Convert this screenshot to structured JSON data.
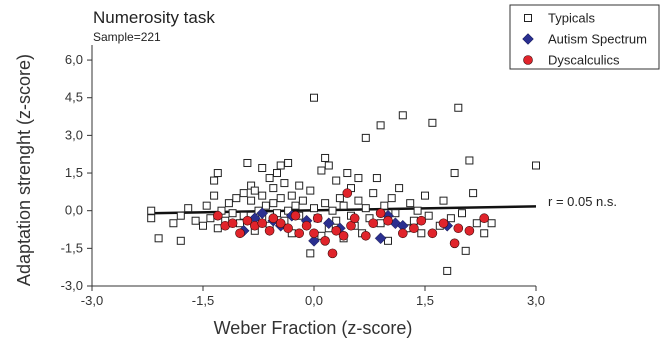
{
  "chart_data": {
    "type": "scatter",
    "title": "Numerosity task",
    "subtitle": "Sample=221",
    "xlabel": "Weber Fraction (z-score)",
    "ylabel": "Adaptation strenght (z-score)",
    "xlim": [
      -3,
      3
    ],
    "ylim": [
      -3,
      6.6
    ],
    "xticks": [
      -3,
      -1.5,
      0,
      1.5,
      3
    ],
    "xtick_labels": [
      "-3,0",
      "-1,5",
      "0,0",
      "1,5",
      "3,0"
    ],
    "yticks": [
      -3,
      -1.5,
      0,
      1.5,
      3,
      4.5,
      6
    ],
    "ytick_labels": [
      "-3,0",
      "-1,5",
      "0,0",
      "1,5",
      "3,0",
      "4,5",
      "6,0"
    ],
    "grid": false,
    "legend_position": "top-right",
    "annotation": "r = 0.05 n.s.",
    "regression_line": {
      "x": [
        -2.2,
        3.0
      ],
      "y": [
        -0.1,
        0.17
      ]
    },
    "series": [
      {
        "name": "Typicals",
        "marker": "square-open",
        "color": "#222222",
        "points": [
          [
            -2.2,
            0.0
          ],
          [
            -2.2,
            -0.3
          ],
          [
            -2.1,
            -1.1
          ],
          [
            -1.9,
            -0.5
          ],
          [
            -1.8,
            -0.2
          ],
          [
            -1.8,
            -1.2
          ],
          [
            -1.7,
            0.1
          ],
          [
            -1.6,
            -0.4
          ],
          [
            -1.5,
            -0.6
          ],
          [
            -1.45,
            0.2
          ],
          [
            -1.4,
            -0.3
          ],
          [
            -1.35,
            0.6
          ],
          [
            -1.35,
            1.2
          ],
          [
            -1.3,
            1.5
          ],
          [
            -1.3,
            -0.7
          ],
          [
            -1.25,
            0.0
          ],
          [
            -1.2,
            -0.4
          ],
          [
            -1.15,
            0.3
          ],
          [
            -1.1,
            -0.1
          ],
          [
            -1.05,
            0.5
          ],
          [
            -1.0,
            -0.5
          ],
          [
            -0.95,
            0.7
          ],
          [
            -0.95,
            -0.2
          ],
          [
            -0.9,
            1.9
          ],
          [
            -0.85,
            1.0
          ],
          [
            -0.85,
            0.4
          ],
          [
            -0.8,
            0.8
          ],
          [
            -0.8,
            -0.8
          ],
          [
            -0.75,
            0.0
          ],
          [
            -0.7,
            1.7
          ],
          [
            -0.7,
            0.6
          ],
          [
            -0.7,
            -0.3
          ],
          [
            -0.65,
            0.2
          ],
          [
            -0.6,
            1.3
          ],
          [
            -0.6,
            -0.6
          ],
          [
            -0.55,
            0.9
          ],
          [
            -0.55,
            0.3
          ],
          [
            -0.5,
            1.5
          ],
          [
            -0.5,
            -0.1
          ],
          [
            -0.45,
            1.8
          ],
          [
            -0.45,
            0.5
          ],
          [
            -0.4,
            -0.4
          ],
          [
            -0.4,
            1.1
          ],
          [
            -0.35,
            1.9
          ],
          [
            -0.35,
            0.0
          ],
          [
            -0.3,
            0.6
          ],
          [
            -0.3,
            -0.9
          ],
          [
            -0.25,
            0.2
          ],
          [
            -0.2,
            -0.2
          ],
          [
            -0.2,
            1.0
          ],
          [
            -0.15,
            0.4
          ],
          [
            -0.1,
            -0.5
          ],
          [
            -0.05,
            -1.7
          ],
          [
            -0.05,
            0.8
          ],
          [
            0.0,
            0.1
          ],
          [
            0.0,
            4.5
          ],
          [
            0.05,
            -0.3
          ],
          [
            0.1,
            1.6
          ],
          [
            0.1,
            -1.0
          ],
          [
            0.15,
            2.1
          ],
          [
            0.15,
            0.3
          ],
          [
            0.2,
            1.8
          ],
          [
            0.2,
            -0.7
          ],
          [
            0.25,
            0.0
          ],
          [
            0.3,
            1.2
          ],
          [
            0.3,
            -0.4
          ],
          [
            0.35,
            0.5
          ],
          [
            0.4,
            -1.1
          ],
          [
            0.4,
            0.2
          ],
          [
            0.45,
            1.5
          ],
          [
            0.5,
            -0.2
          ],
          [
            0.5,
            0.9
          ],
          [
            0.55,
            -0.6
          ],
          [
            0.6,
            1.3
          ],
          [
            0.6,
            0.4
          ],
          [
            0.65,
            -0.9
          ],
          [
            0.7,
            0.1
          ],
          [
            0.7,
            2.9
          ],
          [
            0.75,
            -0.3
          ],
          [
            0.8,
            0.7
          ],
          [
            0.85,
            1.3
          ],
          [
            0.9,
            -0.5
          ],
          [
            0.9,
            3.4
          ],
          [
            0.95,
            0.2
          ],
          [
            1.0,
            -1.2
          ],
          [
            1.05,
            0.5
          ],
          [
            1.1,
            -0.1
          ],
          [
            1.15,
            0.9
          ],
          [
            1.2,
            3.8
          ],
          [
            1.25,
            -0.7
          ],
          [
            1.3,
            0.3
          ],
          [
            1.35,
            -0.4
          ],
          [
            1.4,
            0.0
          ],
          [
            1.45,
            -0.9
          ],
          [
            1.5,
            0.6
          ],
          [
            1.55,
            -0.2
          ],
          [
            1.6,
            3.5
          ],
          [
            1.7,
            -0.6
          ],
          [
            1.75,
            0.4
          ],
          [
            1.8,
            -2.4
          ],
          [
            1.85,
            -0.3
          ],
          [
            1.9,
            1.5
          ],
          [
            1.95,
            4.1
          ],
          [
            2.0,
            -0.1
          ],
          [
            2.05,
            -1.6
          ],
          [
            2.1,
            2.0
          ],
          [
            2.15,
            0.7
          ],
          [
            2.2,
            -0.5
          ],
          [
            2.3,
            -0.9
          ],
          [
            2.4,
            -0.5
          ],
          [
            3.0,
            1.8
          ]
        ]
      },
      {
        "name": "Autism Spectrum",
        "marker": "diamond",
        "color": "#2a2f8f",
        "points": [
          [
            -0.95,
            -0.8
          ],
          [
            -0.8,
            -0.3
          ],
          [
            -0.7,
            -0.1
          ],
          [
            -0.55,
            -0.4
          ],
          [
            -0.45,
            -0.6
          ],
          [
            -0.3,
            -0.2
          ],
          [
            -0.1,
            -0.4
          ],
          [
            0.0,
            -1.2
          ],
          [
            0.2,
            -0.5
          ],
          [
            0.35,
            -0.7
          ],
          [
            0.9,
            -1.1
          ],
          [
            1.0,
            -0.2
          ],
          [
            1.1,
            -0.5
          ],
          [
            1.2,
            -0.6
          ],
          [
            1.8,
            -0.6
          ]
        ]
      },
      {
        "name": "Dyscalculics",
        "marker": "circle",
        "color": "#e0242b",
        "points": [
          [
            -1.3,
            -0.2
          ],
          [
            -1.2,
            -0.6
          ],
          [
            -1.1,
            -0.5
          ],
          [
            -1.0,
            -0.9
          ],
          [
            -0.9,
            -0.4
          ],
          [
            -0.8,
            -0.6
          ],
          [
            -0.7,
            -0.5
          ],
          [
            -0.6,
            -0.8
          ],
          [
            -0.55,
            -0.3
          ],
          [
            -0.45,
            -0.5
          ],
          [
            -0.35,
            -0.7
          ],
          [
            -0.25,
            -0.2
          ],
          [
            -0.2,
            -0.9
          ],
          [
            -0.1,
            -0.6
          ],
          [
            0.0,
            -0.9
          ],
          [
            0.05,
            -0.3
          ],
          [
            0.15,
            -1.2
          ],
          [
            0.25,
            -1.7
          ],
          [
            0.3,
            -0.8
          ],
          [
            0.4,
            -1.0
          ],
          [
            0.45,
            0.7
          ],
          [
            0.5,
            -0.6
          ],
          [
            0.55,
            -0.3
          ],
          [
            0.7,
            -1.0
          ],
          [
            0.8,
            -0.5
          ],
          [
            0.9,
            -0.1
          ],
          [
            1.0,
            -0.4
          ],
          [
            1.2,
            -0.9
          ],
          [
            1.35,
            -0.7
          ],
          [
            1.45,
            -0.4
          ],
          [
            1.6,
            -0.9
          ],
          [
            1.75,
            -0.5
          ],
          [
            1.9,
            -1.3
          ],
          [
            1.95,
            -0.7
          ],
          [
            2.1,
            -0.8
          ],
          [
            2.3,
            -0.3
          ]
        ]
      }
    ]
  }
}
